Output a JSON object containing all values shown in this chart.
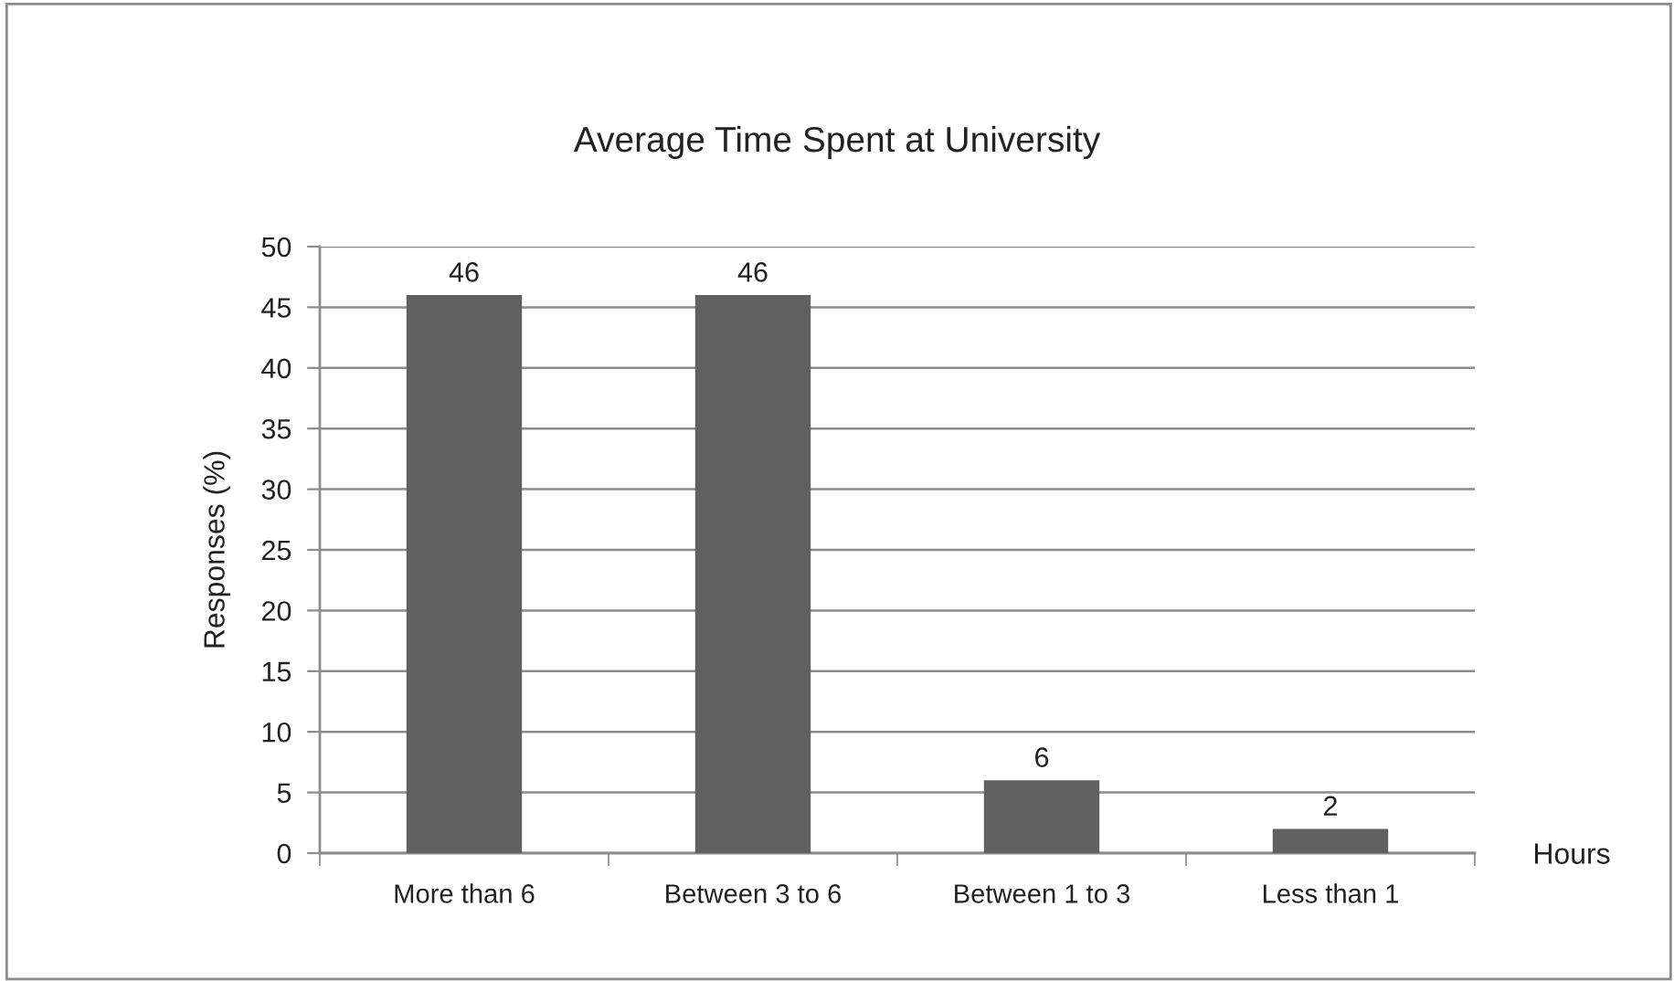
{
  "chart_data": {
    "type": "bar",
    "title": "Average Time Spent at University",
    "xlabel": "Hours",
    "ylabel": "Responses (%)",
    "categories": [
      "More than 6",
      "Between 3 to 6",
      "Between 1 to 3",
      "Less than 1"
    ],
    "values": [
      46,
      46,
      6,
      2
    ],
    "color": "#606060",
    "ylim": [
      0,
      50
    ],
    "yticks": [
      0,
      5,
      10,
      15,
      20,
      25,
      30,
      35,
      40,
      45,
      50
    ],
    "grid": "y",
    "data_labels": true
  }
}
